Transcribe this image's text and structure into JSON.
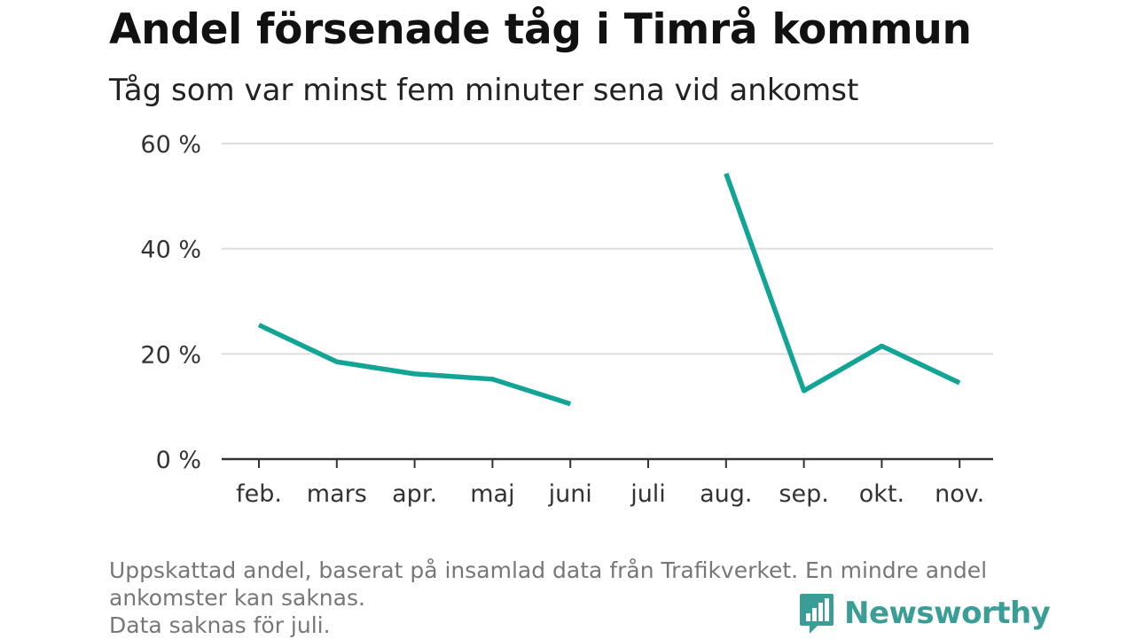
{
  "header": {
    "title": "Andel försenade tåg i Timrå kommun",
    "subtitle": "Tåg som var minst fem minuter sena vid ankomst"
  },
  "chart_data": {
    "type": "line",
    "categories": [
      "feb.",
      "mars",
      "apr.",
      "maj",
      "juni",
      "juli",
      "aug.",
      "sep.",
      "okt.",
      "nov."
    ],
    "series": [
      {
        "values": [
          25.5,
          18.5,
          16.2,
          15.2,
          10.5,
          null,
          54.3,
          13.0,
          21.5,
          14.5
        ]
      }
    ],
    "ylim": [
      0,
      60
    ],
    "yticks": [
      0,
      20,
      40,
      60
    ],
    "ytick_labels": [
      "0 %",
      "20 %",
      "40 %",
      "60 %"
    ],
    "xlabel": "",
    "ylabel": "",
    "grid": true,
    "line_color": "#12a595"
  },
  "footer": {
    "note_1": "Uppskattad andel, baserat på insamlad data från Trafikverket. En mindre andel ankomster kan saknas.",
    "note_2": "Data saknas för juli.",
    "brand": "Newsworthy"
  },
  "colors": {
    "brand": "#3a9e96",
    "grid": "#dddddd",
    "axis": "#333333"
  }
}
